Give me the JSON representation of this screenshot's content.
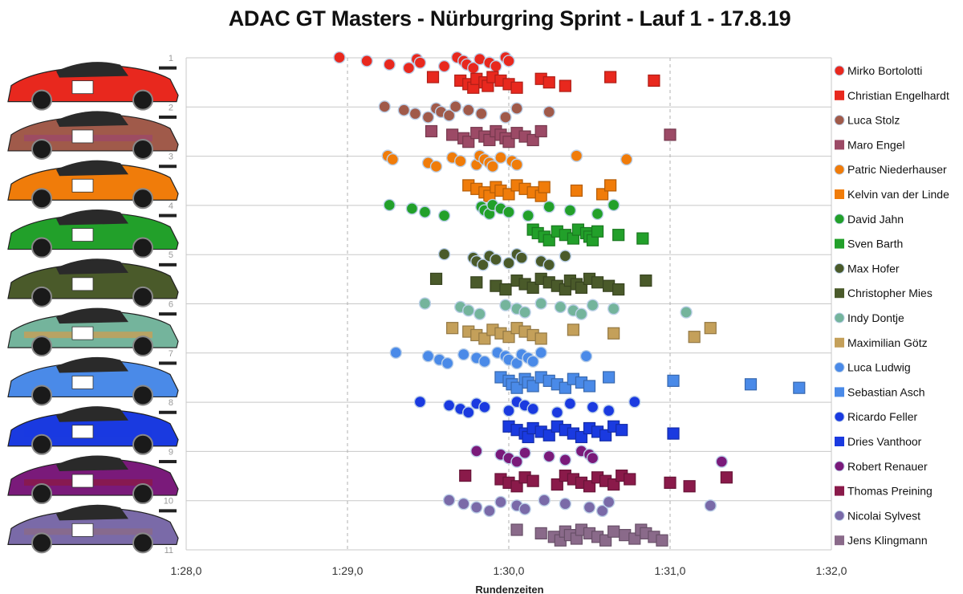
{
  "chart_data": {
    "type": "scatter",
    "title": "ADAC GT Masters - Nürburgring Sprint - Lauf 1 - 17.8.19",
    "xlabel": "Rundenzeiten",
    "ylabel": "",
    "xlim": [
      88,
      92
    ],
    "x_ticks": [
      {
        "value": 88,
        "label": "1:28,0"
      },
      {
        "value": 89,
        "label": "1:29,0"
      },
      {
        "value": 90,
        "label": "1:30,0"
      },
      {
        "value": 91,
        "label": "1:31,0"
      },
      {
        "value": 92,
        "label": "1:32,0"
      }
    ],
    "ylim": [
      1,
      11
    ],
    "y_ticks": [
      1,
      2,
      3,
      4,
      5,
      6,
      7,
      8,
      9,
      10,
      11
    ],
    "grid": {
      "horizontal": true,
      "vertical_dashed": true
    },
    "legend_position": "right",
    "series": [
      {
        "name": "Mirko Bortolotti",
        "marker": "circle",
        "color": "#e8281e",
        "y": 1.1,
        "x": [
          88.95,
          89.12,
          89.26,
          89.38,
          89.43,
          89.45,
          89.6,
          89.68,
          89.72,
          89.74,
          89.78,
          89.82,
          89.88,
          89.92,
          89.98,
          90.0
        ]
      },
      {
        "name": "Christian Engelhardt",
        "marker": "square",
        "color": "#e8281e",
        "y": 1.5,
        "x": [
          89.53,
          89.7,
          89.75,
          89.78,
          89.8,
          89.85,
          89.87,
          89.9,
          89.95,
          90.0,
          90.05,
          90.2,
          90.25,
          90.35,
          90.63,
          90.9
        ]
      },
      {
        "name": "Luca Stolz",
        "marker": "circle",
        "color": "#a05a4a",
        "y": 2.1,
        "x": [
          89.23,
          89.35,
          89.42,
          89.5,
          89.55,
          89.58,
          89.63,
          89.67,
          89.75,
          89.83,
          89.98,
          90.05,
          90.25
        ]
      },
      {
        "name": "Maro Engel",
        "marker": "square",
        "color": "#9c4a66",
        "y": 2.6,
        "x": [
          89.52,
          89.65,
          89.72,
          89.75,
          89.8,
          89.85,
          89.88,
          89.92,
          89.95,
          89.98,
          90.0,
          90.05,
          90.1,
          90.15,
          90.2,
          91.0
        ]
      },
      {
        "name": "Patric Niederhauser",
        "marker": "circle",
        "color": "#f07c0a",
        "y": 3.1,
        "x": [
          89.25,
          89.28,
          89.5,
          89.55,
          89.65,
          89.7,
          89.8,
          89.82,
          89.85,
          89.88,
          89.9,
          89.95,
          90.02,
          90.05,
          90.42,
          90.73
        ]
      },
      {
        "name": "Kelvin van der Linde",
        "marker": "square",
        "color": "#f07c0a",
        "y": 3.7,
        "x": [
          89.75,
          89.8,
          89.85,
          89.88,
          89.92,
          89.95,
          90.0,
          90.05,
          90.1,
          90.15,
          90.2,
          90.22,
          90.42,
          90.58,
          90.63
        ]
      },
      {
        "name": "David Jahn",
        "marker": "circle",
        "color": "#22a02a",
        "y": 4.1,
        "x": [
          89.26,
          89.4,
          89.48,
          89.6,
          89.83,
          89.85,
          89.88,
          89.9,
          89.95,
          90.0,
          90.12,
          90.25,
          90.38,
          90.55,
          90.65
        ]
      },
      {
        "name": "Sven Barth",
        "marker": "square",
        "color": "#22a02a",
        "y": 4.6,
        "x": [
          90.15,
          90.18,
          90.22,
          90.25,
          90.3,
          90.35,
          90.4,
          90.43,
          90.48,
          90.5,
          90.52,
          90.55,
          90.68,
          90.83
        ]
      },
      {
        "name": "Max Hofer",
        "marker": "circle",
        "color": "#4a5a2a",
        "y": 5.1,
        "x": [
          89.6,
          89.78,
          89.8,
          89.84,
          89.88,
          89.92,
          90.0,
          90.05,
          90.08,
          90.2,
          90.25,
          90.35
        ]
      },
      {
        "name": "Christopher Mies",
        "marker": "square",
        "color": "#4a5a2a",
        "y": 5.6,
        "x": [
          89.55,
          89.8,
          89.92,
          89.98,
          90.05,
          90.1,
          90.15,
          90.2,
          90.25,
          90.3,
          90.35,
          90.38,
          90.42,
          90.45,
          90.5,
          90.55,
          90.62,
          90.68,
          90.85
        ]
      },
      {
        "name": "Indy Dontje",
        "marker": "circle",
        "color": "#74b49c",
        "y": 6.1,
        "x": [
          89.48,
          89.7,
          89.75,
          89.82,
          89.98,
          90.05,
          90.1,
          90.2,
          90.32,
          90.4,
          90.45,
          90.52,
          90.65,
          91.1
        ]
      },
      {
        "name": "Maximilian Götz",
        "marker": "square",
        "color": "#c4a05a",
        "y": 6.6,
        "x": [
          89.65,
          89.75,
          89.8,
          89.85,
          89.9,
          89.95,
          90.0,
          90.05,
          90.1,
          90.15,
          90.2,
          90.4,
          90.65,
          91.15,
          91.25
        ]
      },
      {
        "name": "Luca Ludwig",
        "marker": "circle",
        "color": "#4a8ae8",
        "y": 7.1,
        "x": [
          89.3,
          89.5,
          89.57,
          89.62,
          89.72,
          89.8,
          89.85,
          89.93,
          89.98,
          90.0,
          90.05,
          90.08,
          90.12,
          90.15,
          90.2,
          90.48
        ]
      },
      {
        "name": "Sebastian Asch",
        "marker": "square",
        "color": "#4a8ae8",
        "y": 7.6,
        "x": [
          89.95,
          90.0,
          90.02,
          90.05,
          90.1,
          90.12,
          90.15,
          90.2,
          90.25,
          90.3,
          90.35,
          90.4,
          90.45,
          90.5,
          90.62,
          91.02,
          91.5,
          91.8
        ]
      },
      {
        "name": "Ricardo Feller",
        "marker": "circle",
        "color": "#1a3ae0",
        "y": 8.1,
        "x": [
          89.45,
          89.63,
          89.7,
          89.75,
          89.8,
          89.85,
          90.0,
          90.05,
          90.1,
          90.15,
          90.3,
          90.38,
          90.52,
          90.62,
          90.78
        ]
      },
      {
        "name": "Dries Vanthoor",
        "marker": "square",
        "color": "#1a3ae0",
        "y": 8.6,
        "x": [
          90.0,
          90.05,
          90.1,
          90.12,
          90.15,
          90.2,
          90.25,
          90.3,
          90.35,
          90.4,
          90.45,
          90.5,
          90.55,
          90.6,
          90.65,
          90.7,
          91.02
        ]
      },
      {
        "name": "Robert Renauer",
        "marker": "circle",
        "color": "#7a1a7a",
        "y": 9.1,
        "x": [
          89.8,
          89.95,
          90.0,
          90.05,
          90.1,
          90.25,
          90.35,
          90.45,
          90.5,
          90.52,
          91.32
        ]
      },
      {
        "name": "Thomas Preining",
        "marker": "square",
        "color": "#8a1a4a",
        "y": 9.6,
        "x": [
          89.73,
          89.95,
          90.0,
          90.05,
          90.1,
          90.15,
          90.3,
          90.35,
          90.4,
          90.45,
          90.5,
          90.55,
          90.6,
          90.65,
          90.7,
          90.75,
          91.0,
          91.12,
          91.35
        ]
      },
      {
        "name": "Nicolai Sylvest",
        "marker": "circle",
        "color": "#7a6aa8",
        "y": 10.1,
        "x": [
          89.63,
          89.72,
          89.8,
          89.88,
          89.95,
          90.05,
          90.1,
          90.22,
          90.35,
          90.5,
          90.58,
          90.62,
          91.25
        ]
      },
      {
        "name": "Jens Klingmann",
        "marker": "square",
        "color": "#8a6a8a",
        "y": 10.7,
        "x": [
          90.05,
          90.2,
          90.28,
          90.32,
          90.35,
          90.38,
          90.42,
          90.45,
          90.5,
          90.55,
          90.6,
          90.65,
          90.72,
          90.78,
          90.82,
          90.85,
          90.9,
          90.95
        ]
      }
    ]
  }
}
